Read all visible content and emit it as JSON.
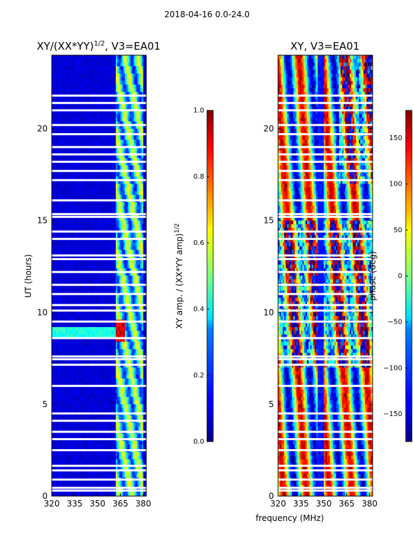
{
  "figure": {
    "suptitle": "2018-04-16 0.0-24.0",
    "xlabel_shared": "frequency (MHz)"
  },
  "chart_data": [
    {
      "type": "heatmap",
      "title": "XY/(XX*YY)^{1/2}, V3=EA01",
      "title_main": "XY/(XX*YY)",
      "title_sup": "1/2",
      "title_tail": ", V3=EA01",
      "xlabel": "frequency (MHz)",
      "ylabel": "UT (hours)",
      "xlim": [
        320,
        382
      ],
      "ylim": [
        0,
        24
      ],
      "xticks": [
        320,
        335,
        350,
        365,
        380
      ],
      "yticks": [
        0,
        5,
        10,
        15,
        20
      ],
      "colorbar": {
        "label": "XY amp. / (XX*YY amp)^{1/2}",
        "label_main": "XY amp. / (XX*YY amp)",
        "label_sup": "1/2",
        "range": [
          0.0,
          1.0
        ],
        "ticks": [
          "0.0",
          "0.2",
          "0.4",
          "0.6",
          "0.8",
          "1.0"
        ],
        "colormap": "jet"
      },
      "description": "mostly low amplitude (~0.05) with elevated bands between 362-380 MHz and a high-amplitude feature near 9 UT at 362-368 MHz",
      "gap_hours": [
        0.3,
        0.45,
        0.9,
        1.4,
        1.65,
        2.5,
        3.1,
        3.5,
        4.1,
        4.5,
        6.0,
        7.15,
        7.45,
        7.6,
        8.6,
        9.5,
        10.1,
        10.4,
        11.0,
        11.5,
        12.2,
        12.9,
        13.1,
        14.0,
        14.4,
        15.2,
        15.35,
        16.1,
        17.2,
        17.7,
        18.2,
        18.6,
        19.0,
        19.7,
        20.2,
        21.0,
        21.4,
        21.8
      ]
    },
    {
      "type": "heatmap",
      "title": "XY, V3=EA01",
      "xlabel": "frequency (MHz)",
      "ylabel": "",
      "xlim": [
        320,
        382
      ],
      "ylim": [
        0,
        24
      ],
      "xticks": [
        320,
        335,
        350,
        365,
        380
      ],
      "yticks": [
        0,
        5,
        10,
        15,
        20
      ],
      "colorbar": {
        "label": "phase (deg)",
        "range": [
          -180,
          180
        ],
        "ticks": [
          "−150",
          "−100",
          "−50",
          "0",
          "50",
          "100",
          "150"
        ],
        "tick_values": [
          -150,
          -100,
          -50,
          0,
          50,
          100,
          150
        ],
        "colormap": "jet"
      },
      "description": "phase wraps across frequency producing vertical stripes; noisier structure in 7-15 UT and upper-right region",
      "gap_hours": [
        0.3,
        0.45,
        0.9,
        1.4,
        1.65,
        2.5,
        3.1,
        3.5,
        4.1,
        4.5,
        6.0,
        7.15,
        7.45,
        7.6,
        8.6,
        9.5,
        10.1,
        10.4,
        11.0,
        11.5,
        12.2,
        12.9,
        13.1,
        14.0,
        14.4,
        15.2,
        15.35,
        16.1,
        17.2,
        17.7,
        18.2,
        18.6,
        19.0,
        19.7,
        20.2,
        21.0,
        21.4,
        21.8
      ]
    }
  ]
}
